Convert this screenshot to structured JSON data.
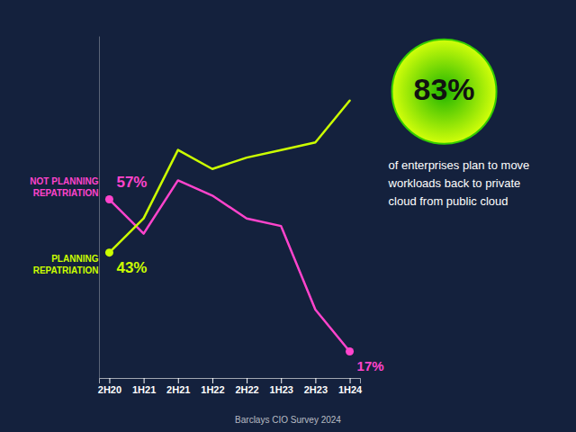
{
  "chart_data": {
    "type": "line",
    "categories": [
      "2H20",
      "1H21",
      "2H21",
      "1H22",
      "2H22",
      "1H23",
      "2H23",
      "1H24"
    ],
    "series": [
      {
        "name": "NOT PLANNING\nREPATRIATION",
        "color": "#ff44cc",
        "values": [
          57,
          48,
          62,
          58,
          52,
          50,
          28,
          17
        ],
        "value_labels": [
          "57%",
          null,
          null,
          null,
          null,
          null,
          null,
          "17%"
        ]
      },
      {
        "name": "PLANNING\nREPATRIATION",
        "color": "#ccff00",
        "values": [
          43,
          52,
          70,
          65,
          68,
          70,
          72,
          83
        ],
        "value_labels": [
          "43%",
          null,
          null,
          null,
          null,
          null,
          null,
          "83%"
        ]
      }
    ],
    "ylim": [
      10,
      100
    ],
    "tick_labels": "x",
    "annotations": [
      "of enterprises plan to move",
      "workloads back to private",
      "cloud from public cloud"
    ],
    "source": "Barclays CIO Survey 2024"
  }
}
